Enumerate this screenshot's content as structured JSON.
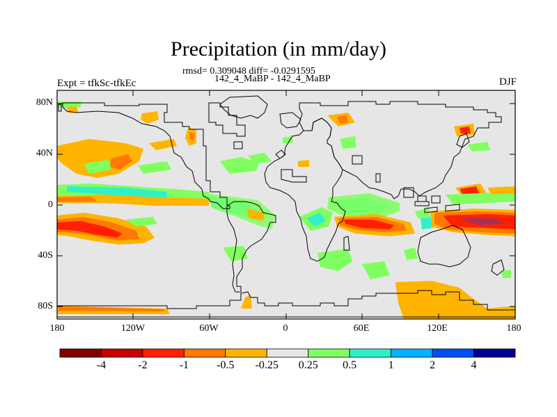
{
  "title": "Precipitation (in mm/day)",
  "stats": "rmsd= 0.309048 diff= -0.0291595",
  "subtitle": "142_4_MaBP - 142_4_MaBP",
  "experiment": "Expt = tfkSc-tfkEc",
  "season": "DJF",
  "latitude_labels": [
    "80N",
    "40N",
    "0",
    "40S",
    "80S"
  ],
  "longitude_labels": [
    "180",
    "120W",
    "60W",
    "0",
    "60E",
    "120E",
    "180"
  ],
  "colorbar": {
    "colors": [
      "#800000",
      "#c80000",
      "#ff2000",
      "#ff7800",
      "#ffb400",
      "#e6e6e6",
      "#80ff60",
      "#30f0c8",
      "#00b4ff",
      "#0050f0",
      "#000090"
    ],
    "labels": [
      "-4",
      "-2",
      "-1",
      "-0.5",
      "-0.25",
      "0.25",
      "0.5",
      "1",
      "2",
      "4"
    ]
  },
  "colors": {
    "map_background": "#e6e6e6",
    "coastline": "#000000"
  }
}
